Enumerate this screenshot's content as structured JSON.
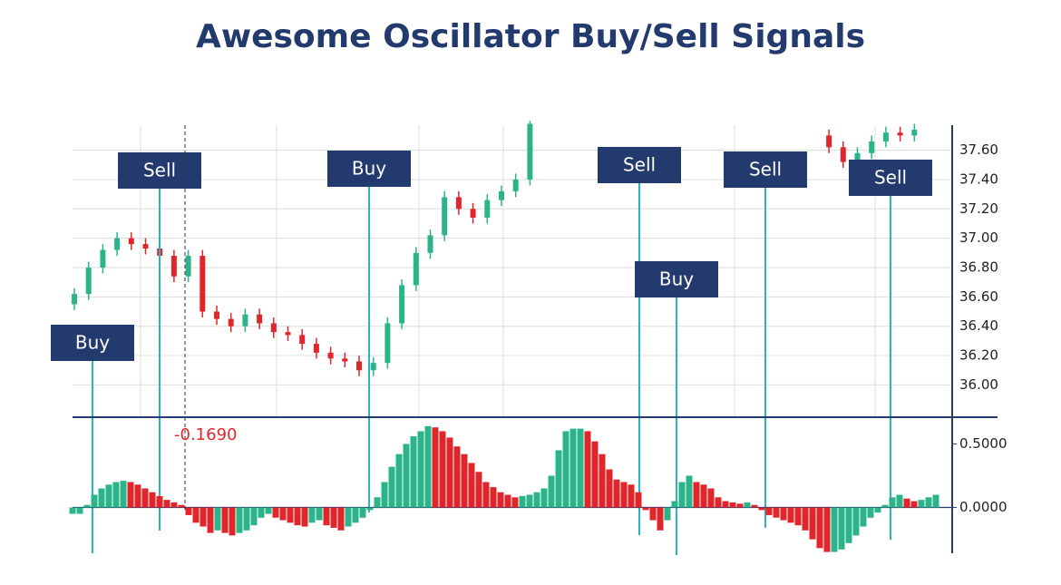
{
  "chart_data": [
    {
      "type": "candlestick",
      "title": "Awesome Oscillator Buy/Sell Signals",
      "open": [
        36.55,
        36.62,
        36.8,
        36.92,
        37.0,
        36.96,
        36.93,
        36.88,
        36.74,
        36.88,
        36.5,
        36.45,
        36.4,
        36.48,
        36.42,
        36.36,
        36.34,
        36.28,
        36.22,
        36.18,
        36.16,
        36.1,
        36.15,
        36.42,
        36.68,
        36.9,
        37.02,
        37.28,
        37.2,
        37.14,
        37.26,
        37.32,
        37.4,
        null,
        null,
        null,
        null,
        null,
        null,
        null,
        null,
        null,
        null,
        null,
        null,
        null,
        null,
        null,
        null,
        null,
        null,
        null,
        null,
        37.7,
        37.62,
        37.52,
        37.58,
        37.66,
        37.72,
        37.7
      ],
      "high": [
        36.66,
        36.84,
        36.96,
        37.04,
        37.04,
        37.0,
        36.97,
        36.92,
        36.92,
        36.92,
        36.54,
        36.49,
        36.52,
        36.52,
        36.46,
        36.4,
        36.38,
        36.32,
        36.26,
        36.22,
        36.2,
        36.19,
        36.46,
        36.72,
        36.94,
        37.06,
        37.32,
        37.32,
        37.24,
        37.3,
        37.36,
        37.44,
        37.8,
        null,
        null,
        null,
        null,
        null,
        null,
        null,
        null,
        null,
        null,
        null,
        null,
        null,
        null,
        null,
        null,
        null,
        null,
        null,
        null,
        37.74,
        37.66,
        37.62,
        37.7,
        37.76,
        37.76,
        37.78
      ],
      "low": [
        36.51,
        36.58,
        36.76,
        36.88,
        36.92,
        36.89,
        36.84,
        36.7,
        36.7,
        36.46,
        36.41,
        36.36,
        36.36,
        36.38,
        36.32,
        36.3,
        36.24,
        36.18,
        36.14,
        36.12,
        36.06,
        36.06,
        36.11,
        36.38,
        36.64,
        36.86,
        36.98,
        37.16,
        37.1,
        37.1,
        37.22,
        37.28,
        37.36,
        null,
        null,
        null,
        null,
        null,
        null,
        null,
        null,
        null,
        null,
        null,
        null,
        null,
        null,
        null,
        null,
        null,
        null,
        null,
        null,
        37.58,
        37.48,
        37.48,
        37.54,
        37.62,
        37.66,
        37.66
      ],
      "close": [
        36.62,
        36.8,
        36.92,
        37.0,
        36.96,
        36.93,
        36.88,
        36.74,
        36.88,
        36.5,
        36.45,
        36.4,
        36.48,
        36.42,
        36.36,
        36.34,
        36.28,
        36.22,
        36.18,
        36.16,
        36.1,
        36.15,
        36.42,
        36.68,
        36.9,
        37.02,
        37.28,
        37.2,
        37.14,
        37.26,
        37.32,
        37.4,
        37.78,
        null,
        null,
        null,
        null,
        null,
        null,
        null,
        null,
        null,
        null,
        null,
        null,
        null,
        null,
        null,
        null,
        null,
        null,
        null,
        null,
        37.62,
        37.52,
        37.58,
        37.66,
        37.72,
        37.7,
        37.74
      ],
      "up_color": "#2bb38a",
      "down_color": "#e0262b",
      "ylim": [
        35.78,
        37.82
      ],
      "yticks": [
        {
          "value": 36,
          "label": "36.00"
        },
        {
          "value": 36.2,
          "label": "36.20"
        },
        {
          "value": 36.4,
          "label": "36.40"
        },
        {
          "value": 36.6,
          "label": "36.60"
        },
        {
          "value": 36.8,
          "label": "36.80"
        },
        {
          "value": 37,
          "label": "37.00"
        },
        {
          "value": 37.2,
          "label": "37.20"
        },
        {
          "value": 37.4,
          "label": "37.40"
        },
        {
          "value": 37.6,
          "label": "37.60"
        }
      ],
      "grid": true,
      "annotations": [
        "Buy",
        "Sell",
        "Buy",
        "Sell",
        "Buy",
        "Sell",
        "Sell"
      ]
    },
    {
      "type": "bar",
      "values": [
        -0.05,
        -0.05,
        0.02,
        0.1,
        0.15,
        0.18,
        0.2,
        0.21,
        0.2,
        0.18,
        0.15,
        0.12,
        0.09,
        0.06,
        0.04,
        0.02,
        -0.06,
        -0.12,
        -0.15,
        -0.2,
        -0.18,
        -0.2,
        -0.22,
        -0.2,
        -0.18,
        -0.14,
        -0.08,
        -0.05,
        -0.08,
        -0.1,
        -0.12,
        -0.14,
        -0.15,
        -0.12,
        -0.1,
        -0.14,
        -0.16,
        -0.18,
        -0.15,
        -0.12,
        -0.08,
        -0.02,
        0.08,
        0.2,
        0.32,
        0.42,
        0.5,
        0.56,
        0.6,
        0.64,
        0.63,
        0.6,
        0.55,
        0.48,
        0.42,
        0.35,
        0.28,
        0.2,
        0.16,
        0.12,
        0.1,
        0.08,
        0.09,
        0.1,
        0.12,
        0.15,
        0.25,
        0.45,
        0.6,
        0.62,
        0.62,
        0.6,
        0.52,
        0.42,
        0.3,
        0.22,
        0.2,
        0.18,
        0.12,
        -0.02,
        -0.1,
        -0.18,
        -0.1,
        0.05,
        0.2,
        0.25,
        0.2,
        0.18,
        0.15,
        0.08,
        0.05,
        0.04,
        0.03,
        0.04,
        0.02,
        -0.02,
        -0.06,
        -0.08,
        -0.1,
        -0.12,
        -0.14,
        -0.18,
        -0.25,
        -0.32,
        -0.35,
        -0.35,
        -0.33,
        -0.28,
        -0.22,
        -0.15,
        -0.08,
        -0.04,
        0.02,
        0.08,
        0.1,
        0.07,
        0.05,
        0.06,
        0.08,
        0.1
      ],
      "up_color": "#2bb38a",
      "down_color": "#e0262b",
      "ylim": [
        -0.36,
        0.71
      ],
      "yticks": [
        {
          "value": 0,
          "label": "0.0000"
        },
        {
          "value": 0.5,
          "label": "0.5000"
        }
      ],
      "annotation": "-0.1690"
    }
  ]
}
